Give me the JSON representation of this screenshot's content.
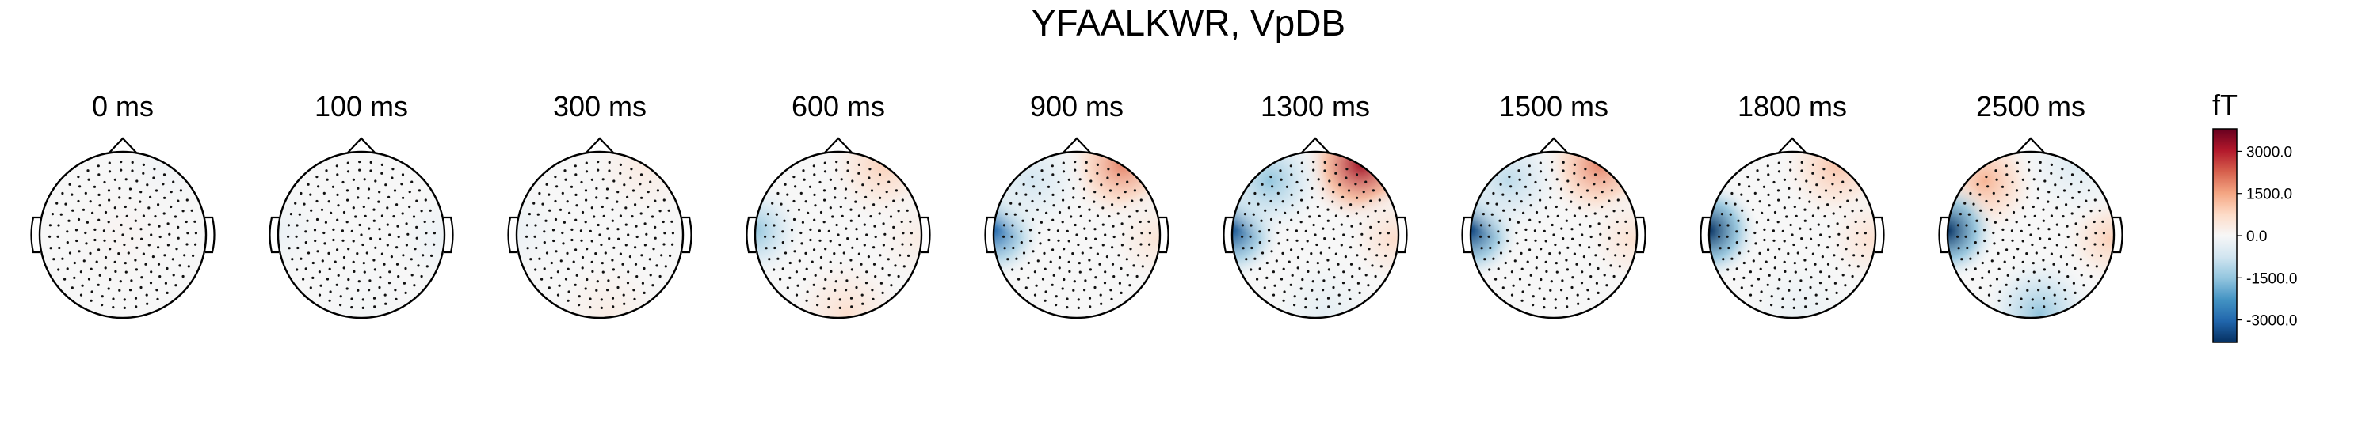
{
  "chart_data": {
    "type": "heatmap",
    "title": "YFAALKWR, VpDB",
    "colorbar": {
      "unit": "fT",
      "ticks": [
        3000.0,
        1500.0,
        0.0,
        -1500.0,
        -3000.0
      ],
      "tick_labels": [
        "3000.0",
        "1500.0",
        "0.0",
        "-1500.0",
        "-3000.0"
      ],
      "range": [
        -3800,
        3800
      ],
      "colormap": "RdBu_r",
      "colors": {
        "low": "#053061",
        "mid": "#f7f7f7",
        "high": "#67001f"
      }
    },
    "topomaps": [
      {
        "label": "0 ms",
        "time_ms": 0,
        "blobs": [
          {
            "region": "top-right",
            "value": -150
          },
          {
            "region": "center",
            "value": 100
          }
        ]
      },
      {
        "label": "100 ms",
        "time_ms": 100,
        "blobs": [
          {
            "region": "left",
            "value": -250
          },
          {
            "region": "right",
            "value": -250
          },
          {
            "region": "bottom",
            "value": -100
          }
        ]
      },
      {
        "label": "300 ms",
        "time_ms": 300,
        "blobs": [
          {
            "region": "top-right",
            "value": 350
          },
          {
            "region": "bottom",
            "value": 300
          },
          {
            "region": "left",
            "value": -250
          }
        ]
      },
      {
        "label": "600 ms",
        "time_ms": 600,
        "blobs": [
          {
            "region": "top-right",
            "value": 900
          },
          {
            "region": "left",
            "value": -1500
          },
          {
            "region": "bottom",
            "value": 650
          },
          {
            "region": "right",
            "value": 300
          }
        ]
      },
      {
        "label": "900 ms",
        "time_ms": 900,
        "blobs": [
          {
            "region": "top-right",
            "value": 1900
          },
          {
            "region": "left",
            "value": -3000
          },
          {
            "region": "top-left",
            "value": -700
          },
          {
            "region": "right",
            "value": 500
          }
        ]
      },
      {
        "label": "1300 ms",
        "time_ms": 1300,
        "blobs": [
          {
            "region": "top-right",
            "value": 3200
          },
          {
            "region": "left",
            "value": -3300
          },
          {
            "region": "top-left",
            "value": -1500
          },
          {
            "region": "bottom",
            "value": -400
          },
          {
            "region": "right",
            "value": 700
          }
        ]
      },
      {
        "label": "1500 ms",
        "time_ms": 1500,
        "blobs": [
          {
            "region": "top-right",
            "value": 1900
          },
          {
            "region": "left",
            "value": -3500
          },
          {
            "region": "top-left",
            "value": -1000
          },
          {
            "region": "right",
            "value": 600
          }
        ]
      },
      {
        "label": "1800 ms",
        "time_ms": 1800,
        "blobs": [
          {
            "region": "top-right",
            "value": 1100
          },
          {
            "region": "left",
            "value": -3800
          },
          {
            "region": "right",
            "value": 600
          },
          {
            "region": "bottom",
            "value": -300
          }
        ]
      },
      {
        "label": "2500 ms",
        "time_ms": 2500,
        "blobs": [
          {
            "region": "top-left",
            "value": 1300
          },
          {
            "region": "left",
            "value": -3800
          },
          {
            "region": "right",
            "value": 900
          },
          {
            "region": "bottom",
            "value": -1500
          },
          {
            "region": "top-right",
            "value": -500
          }
        ]
      }
    ]
  }
}
